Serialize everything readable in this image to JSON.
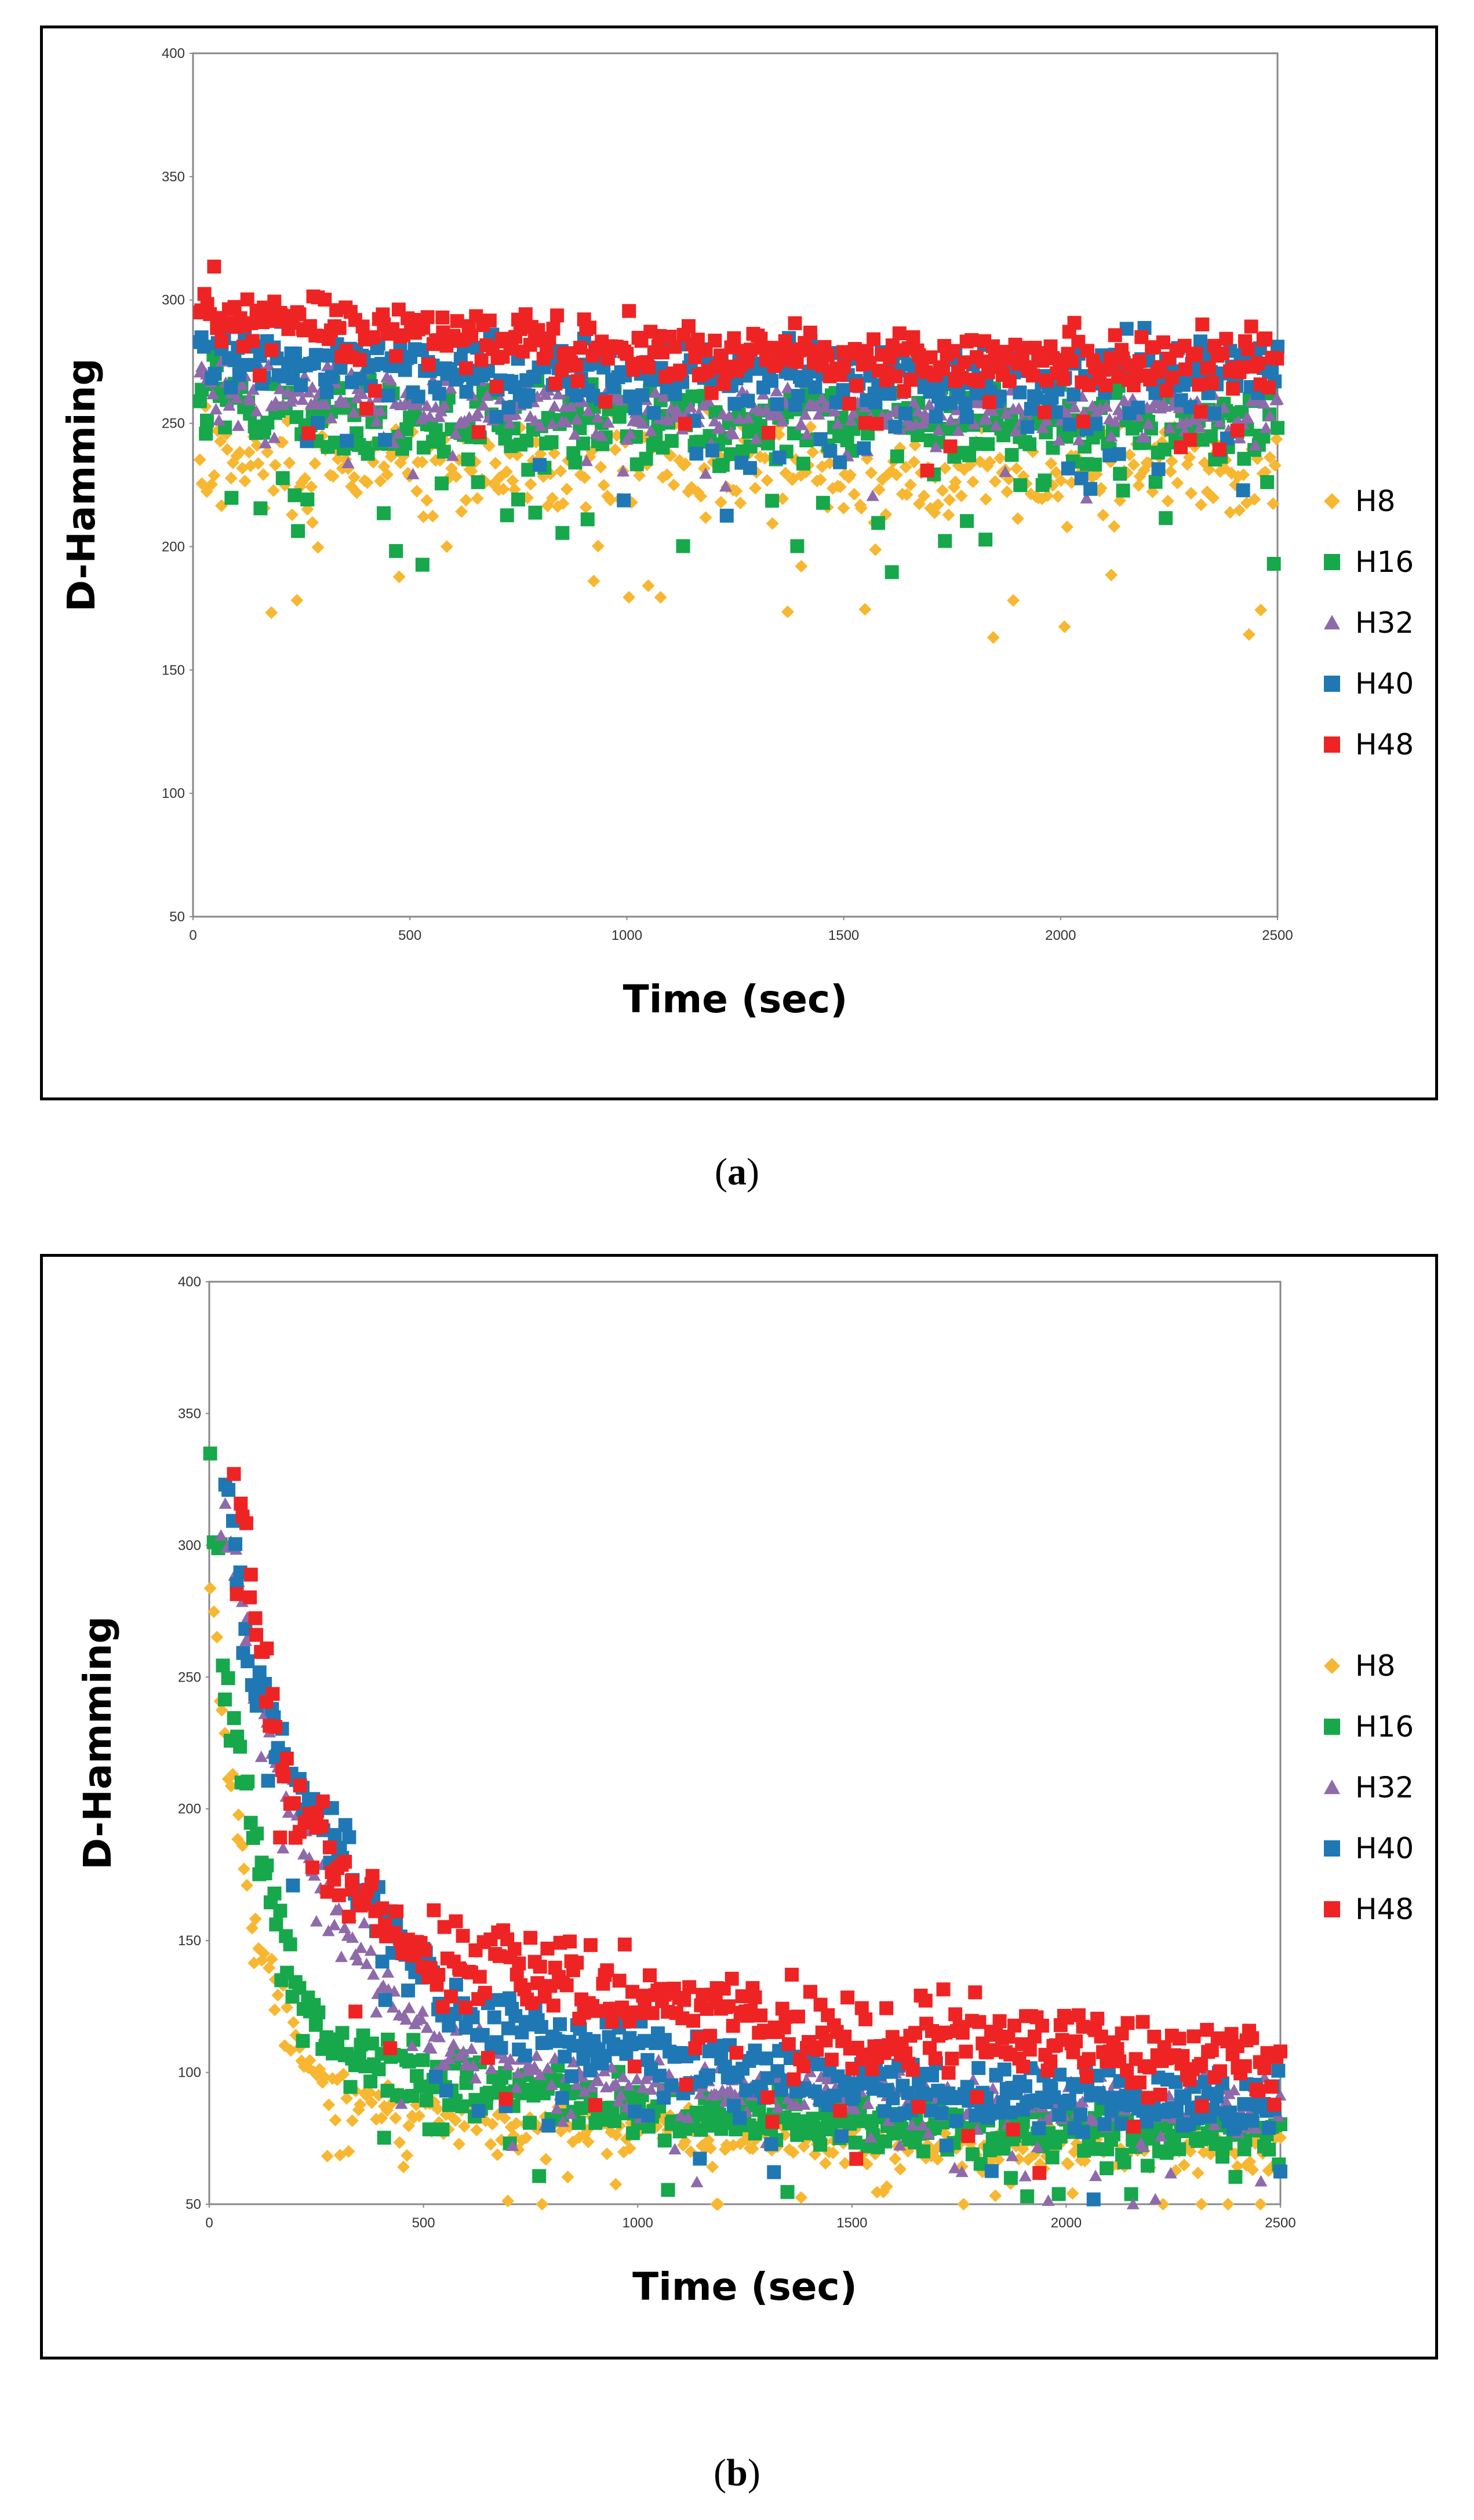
{
  "chart_data": [
    {
      "type": "scatter",
      "panel_label": "a",
      "xlabel": "Time (sec)",
      "ylabel": "D-Hamming",
      "xlim": [
        0,
        2500
      ],
      "ylim": [
        50,
        400
      ],
      "xticks": [
        0,
        500,
        1000,
        1500,
        2000,
        2500
      ],
      "yticks": [
        50,
        100,
        150,
        200,
        250,
        300,
        350,
        400
      ],
      "legend_position": "right",
      "series": [
        {
          "name": "H8",
          "color": "#f7b731",
          "marker": "diamond",
          "trend": [
            [
              0,
              240
            ],
            [
              100,
              235
            ],
            [
              500,
              232
            ],
            [
              1000,
              232
            ],
            [
              1500,
              230
            ],
            [
              2000,
              228
            ],
            [
              2500,
              230
            ]
          ],
          "spread": 14,
          "x_start": 15
        },
        {
          "name": "H16",
          "color": "#16a84b",
          "marker": "square",
          "trend": [
            [
              0,
              268
            ],
            [
              100,
              258
            ],
            [
              500,
              252
            ],
            [
              1000,
              250
            ],
            [
              1500,
              248
            ],
            [
              2000,
              248
            ],
            [
              2500,
              248
            ]
          ],
          "spread": 12,
          "x_start": 15
        },
        {
          "name": "H32",
          "color": "#8e6aab",
          "marker": "triangle",
          "trend": [
            [
              0,
              270
            ],
            [
              100,
              262
            ],
            [
              500,
              258
            ],
            [
              1000,
              255
            ],
            [
              1500,
              255
            ],
            [
              2000,
              255
            ],
            [
              2500,
              255
            ]
          ],
          "spread": 8,
          "x_start": 15
        },
        {
          "name": "H40",
          "color": "#1f78b4",
          "marker": "square",
          "trend": [
            [
              0,
              285
            ],
            [
              100,
              278
            ],
            [
              500,
              272
            ],
            [
              1000,
              270
            ],
            [
              1500,
              268
            ],
            [
              2000,
              268
            ],
            [
              2500,
              268
            ]
          ],
          "spread": 10,
          "x_start": 15
        },
        {
          "name": "H48",
          "color": "#ee2424",
          "marker": "square",
          "trend": [
            [
              0,
              300
            ],
            [
              100,
              293
            ],
            [
              500,
              285
            ],
            [
              1000,
              280
            ],
            [
              1500,
              275
            ],
            [
              2000,
              275
            ],
            [
              2500,
              276
            ]
          ],
          "spread": 9,
          "x_start": 15
        }
      ]
    },
    {
      "type": "scatter",
      "panel_label": "b",
      "xlabel": "Time (sec)",
      "ylabel": "D-Hamming",
      "xlim": [
        0,
        2500
      ],
      "ylim": [
        50,
        400
      ],
      "xticks": [
        0,
        500,
        1000,
        1500,
        2000,
        2500
      ],
      "yticks": [
        50,
        100,
        150,
        200,
        250,
        300,
        350,
        400
      ],
      "legend_position": "right",
      "series": [
        {
          "name": "H8",
          "color": "#f7b731",
          "marker": "diamond",
          "trend": [
            [
              0,
              290
            ],
            [
              50,
              210
            ],
            [
              100,
              160
            ],
            [
              200,
              110
            ],
            [
              300,
              90
            ],
            [
              500,
              82
            ],
            [
              1000,
              78
            ],
            [
              1500,
              73
            ],
            [
              2000,
              70
            ],
            [
              2500,
              70
            ]
          ],
          "spread": 7,
          "x_start": 5
        },
        {
          "name": "H16",
          "color": "#16a84b",
          "marker": "square",
          "trend": [
            [
              0,
              335
            ],
            [
              50,
              250
            ],
            [
              100,
              195
            ],
            [
              200,
              135
            ],
            [
              300,
              110
            ],
            [
              500,
              95
            ],
            [
              1000,
              88
            ],
            [
              1500,
              80
            ],
            [
              2000,
              78
            ],
            [
              2500,
              78
            ]
          ],
          "spread": 8,
          "x_start": 5
        },
        {
          "name": "H32",
          "color": "#8e6aab",
          "marker": "triangle",
          "trend": [
            [
              30,
              320
            ],
            [
              80,
              275
            ],
            [
              150,
              220
            ],
            [
              250,
              175
            ],
            [
              400,
              130
            ],
            [
              600,
              105
            ],
            [
              1000,
              95
            ],
            [
              1500,
              92
            ],
            [
              2000,
              88
            ],
            [
              2500,
              86
            ]
          ],
          "spread": 8,
          "x_start": 30
        },
        {
          "name": "H40",
          "color": "#1f78b4",
          "marker": "square",
          "trend": [
            [
              40,
              325
            ],
            [
              100,
              255
            ],
            [
              200,
              210
            ],
            [
              300,
              185
            ],
            [
              450,
              150
            ],
            [
              600,
              120
            ],
            [
              1000,
              108
            ],
            [
              1500,
              95
            ],
            [
              2000,
              90
            ],
            [
              2500,
              88
            ]
          ],
          "spread": 9,
          "x_start": 40
        },
        {
          "name": "H48",
          "color": "#ee2424",
          "marker": "square",
          "trend": [
            [
              60,
              320
            ],
            [
              130,
              250
            ],
            [
              200,
              205
            ],
            [
              300,
              175
            ],
            [
              450,
              150
            ],
            [
              600,
              140
            ],
            [
              800,
              135
            ],
            [
              1000,
              130
            ],
            [
              1500,
              115
            ],
            [
              2000,
              110
            ],
            [
              2500,
              103
            ]
          ],
          "spread": 11,
          "x_start": 60
        }
      ]
    }
  ]
}
